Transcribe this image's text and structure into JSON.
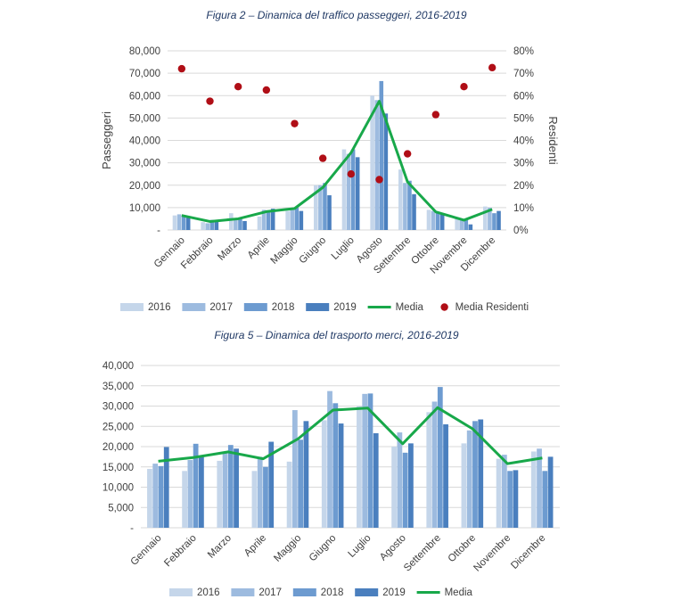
{
  "figures": [
    {
      "title": "Figura 2 – Dinamica del traffico passeggeri, 2016-2019"
    },
    {
      "title": "Figura 5 – Dinamica del trasporto merci, 2016-2019"
    }
  ],
  "colors": {
    "2016": "#c5d6ea",
    "2017": "#9dbbdf",
    "2018": "#6d9bd0",
    "2019": "#4a7fbe",
    "media": "#18a84a",
    "residenti": "#b00e16",
    "grid": "#d9d9d9"
  },
  "chart_data": [
    {
      "type": "bar",
      "title": "Figura 2 – Dinamica del traffico passeggeri, 2016-2019",
      "categories": [
        "Gennaio",
        "Febbraio",
        "Marzo",
        "Aprile",
        "Maggio",
        "Giugno",
        "Luglio",
        "Agosto",
        "Settembre",
        "Ottobre",
        "Novembre",
        "Dicembre"
      ],
      "ylabel": "Passeggeri",
      "y2label": "Residenti",
      "ylim": [
        0,
        80000
      ],
      "y2lim": [
        0,
        0.8
      ],
      "yticks": [
        "-",
        "10,000",
        "20,000",
        "30,000",
        "40,000",
        "50,000",
        "60,000",
        "70,000",
        "80,000"
      ],
      "y2ticks": [
        "0%",
        "10%",
        "20%",
        "30%",
        "40%",
        "50%",
        "60%",
        "70%",
        "80%"
      ],
      "grid": true,
      "legend": "bottom",
      "series": [
        {
          "name": "2016",
          "kind": "bar",
          "values": [
            6500,
            3500,
            7500,
            6000,
            8500,
            20000,
            36000,
            60000,
            27000,
            9000,
            5000,
            10500
          ]
        },
        {
          "name": "2017",
          "kind": "bar",
          "values": [
            7000,
            3000,
            5000,
            9000,
            9500,
            20000,
            34000,
            58000,
            21000,
            8500,
            5000,
            10000
          ]
        },
        {
          "name": "2018",
          "kind": "bar",
          "values": [
            6000,
            4500,
            5000,
            8500,
            10000,
            21000,
            36000,
            66500,
            22000,
            8000,
            5000,
            7500
          ]
        },
        {
          "name": "2019",
          "kind": "bar",
          "values": [
            5500,
            4500,
            4000,
            9500,
            8500,
            15500,
            32500,
            52000,
            16000,
            7000,
            2500,
            8500
          ]
        },
        {
          "name": "Media",
          "kind": "line",
          "axis": "left",
          "values": [
            6500,
            3800,
            5000,
            8200,
            9600,
            19000,
            34500,
            57500,
            21500,
            8100,
            4400,
            9200
          ]
        },
        {
          "name": "Media Residenti",
          "kind": "scatter",
          "axis": "right",
          "values": [
            0.72,
            0.575,
            0.64,
            0.625,
            0.475,
            0.32,
            0.25,
            0.225,
            0.34,
            0.515,
            0.64,
            0.725
          ]
        }
      ]
    },
    {
      "type": "bar",
      "title": "Figura 5 – Dinamica del trasporto merci, 2016-2019",
      "categories": [
        "Gennaio",
        "Febbraio",
        "Marzo",
        "Aprile",
        "Maggio",
        "Giugno",
        "Luglio",
        "Agosto",
        "Settembre",
        "Ottobre",
        "Novembre",
        "Dicembre"
      ],
      "ylim": [
        0,
        40000
      ],
      "yticks": [
        "-",
        "5,000",
        "10,000",
        "15,000",
        "20,000",
        "25,000",
        "30,000",
        "35,000",
        "40,000"
      ],
      "grid": true,
      "legend": "bottom",
      "series": [
        {
          "name": "2016",
          "kind": "bar",
          "values": [
            14500,
            14000,
            16500,
            14000,
            16300,
            26500,
            30000,
            20000,
            28500,
            20800,
            17000,
            18800
          ]
        },
        {
          "name": "2017",
          "kind": "bar",
          "values": [
            15800,
            16700,
            18500,
            17500,
            29000,
            33700,
            33000,
            23500,
            31100,
            24000,
            18000,
            19500
          ]
        },
        {
          "name": "2018",
          "kind": "bar",
          "values": [
            15200,
            20700,
            20400,
            15000,
            21700,
            30700,
            33100,
            18500,
            34700,
            26300,
            14000,
            14000
          ]
        },
        {
          "name": "2019",
          "kind": "bar",
          "values": [
            19900,
            17800,
            19500,
            21200,
            26300,
            25700,
            23300,
            20800,
            25500,
            26700,
            14200,
            17500
          ]
        },
        {
          "name": "Media",
          "kind": "line",
          "values": [
            16400,
            17300,
            18700,
            17000,
            21900,
            29000,
            29500,
            20700,
            29600,
            24400,
            15800,
            17200
          ]
        }
      ]
    }
  ]
}
